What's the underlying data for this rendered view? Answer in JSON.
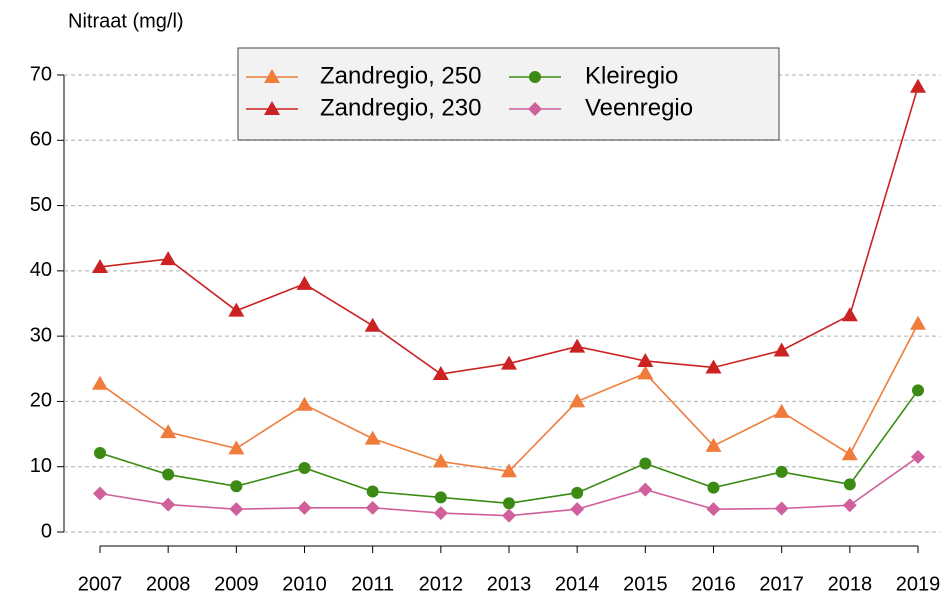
{
  "chart_data": {
    "type": "line",
    "title": "Nitraat (mg/l)",
    "categories": [
      "2007",
      "2008",
      "2009",
      "2010",
      "2011",
      "2012",
      "2013",
      "2014",
      "2015",
      "2016",
      "2017",
      "2018",
      "2019"
    ],
    "series": [
      {
        "name": "Zandregio, 250",
        "color": "#f07c3c",
        "marker": "triangle",
        "values": [
          22.7,
          15.3,
          12.8,
          19.5,
          14.3,
          10.8,
          9.3,
          20.0,
          24.3,
          13.2,
          18.4,
          11.9,
          31.9
        ]
      },
      {
        "name": "Zandregio, 230",
        "color": "#cc2222",
        "marker": "triangle",
        "values": [
          40.6,
          41.8,
          33.9,
          38.0,
          31.6,
          24.2,
          25.8,
          28.4,
          26.2,
          25.2,
          27.8,
          33.2,
          68.2
        ]
      },
      {
        "name": "Kleiregio",
        "color": "#3a8a14",
        "marker": "circle",
        "values": [
          12.1,
          8.8,
          7.0,
          9.8,
          6.2,
          5.3,
          4.4,
          6.0,
          10.5,
          6.8,
          9.2,
          7.3,
          21.7
        ]
      },
      {
        "name": "Veenregio",
        "color": "#d0609c",
        "marker": "diamond",
        "values": [
          5.9,
          4.2,
          3.5,
          3.7,
          3.7,
          2.9,
          2.5,
          3.5,
          6.5,
          3.5,
          3.6,
          4.1,
          11.5
        ]
      }
    ],
    "ylim": [
      0,
      70
    ],
    "yticks": [
      0,
      10,
      20,
      30,
      40,
      50,
      60,
      70
    ],
    "grid": true
  }
}
